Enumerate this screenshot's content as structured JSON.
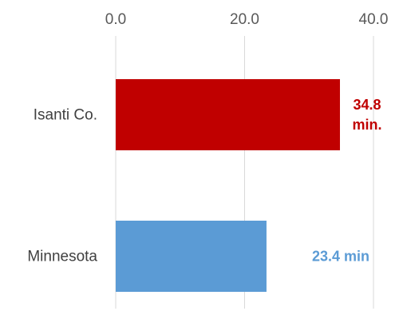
{
  "chart_data": {
    "type": "bar",
    "orientation": "horizontal",
    "axis_position": "top",
    "grid": true,
    "xlim": [
      0,
      40
    ],
    "ticks": [
      0,
      20,
      40
    ],
    "tick_labels": [
      "0.0",
      "20.0",
      "40.0"
    ],
    "categories": [
      "Isanti Co.",
      "Minnesota"
    ],
    "values": [
      34.8,
      23.4
    ],
    "data_labels": [
      [
        "34.8",
        "min."
      ],
      [
        "23.4 min"
      ]
    ],
    "colors": [
      "#C00000",
      "#5B9BD5"
    ]
  }
}
